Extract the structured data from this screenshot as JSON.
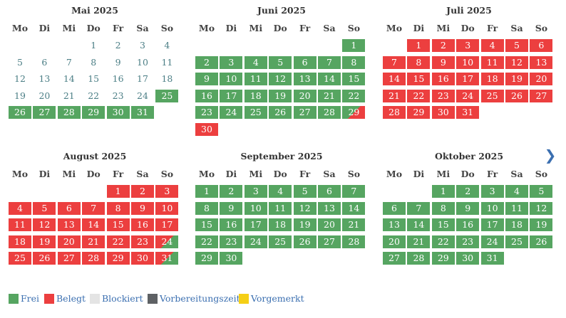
{
  "weekdays": [
    "Mo",
    "Di",
    "Mi",
    "Do",
    "Fr",
    "Sa",
    "So"
  ],
  "months": [
    {
      "title": "Mai 2025",
      "first_weekday": 3,
      "days": 31,
      "status": {
        "plain": [
          1,
          2,
          3,
          4,
          5,
          6,
          7,
          8,
          9,
          10,
          11,
          12,
          13,
          14,
          15,
          16,
          17,
          18,
          19,
          20,
          21,
          22,
          23,
          24
        ],
        "free": [
          25,
          26,
          27,
          28,
          29,
          30,
          31
        ]
      }
    },
    {
      "title": "Juni 2025",
      "first_weekday": 6,
      "days": 30,
      "status": {
        "free": [
          1,
          2,
          3,
          4,
          5,
          6,
          7,
          8,
          9,
          10,
          11,
          12,
          13,
          14,
          15,
          16,
          17,
          18,
          19,
          20,
          21,
          22,
          23,
          24,
          25,
          26,
          27,
          28
        ],
        "half-in": [
          29
        ],
        "booked": [
          30
        ]
      }
    },
    {
      "title": "Juli 2025",
      "first_weekday": 1,
      "days": 31,
      "status": {
        "booked": [
          1,
          2,
          3,
          4,
          5,
          6,
          7,
          8,
          9,
          10,
          11,
          12,
          13,
          14,
          15,
          16,
          17,
          18,
          19,
          20,
          21,
          22,
          23,
          24,
          25,
          26,
          27,
          28,
          29,
          30,
          31
        ]
      }
    },
    {
      "title": "August 2025",
      "first_weekday": 4,
      "days": 31,
      "status": {
        "booked": [
          1,
          2,
          3,
          4,
          5,
          6,
          7,
          8,
          9,
          10,
          11,
          12,
          13,
          14,
          15,
          16,
          17,
          18,
          19,
          20,
          21,
          22,
          23,
          25,
          26,
          27,
          28,
          29,
          30
        ],
        "half-out": [
          24,
          31
        ]
      }
    },
    {
      "title": "September 2025",
      "first_weekday": 0,
      "days": 30,
      "status": {
        "free": [
          1,
          2,
          3,
          4,
          5,
          6,
          7,
          8,
          9,
          10,
          11,
          12,
          13,
          14,
          15,
          16,
          17,
          18,
          19,
          20,
          21,
          22,
          23,
          24,
          25,
          26,
          27,
          28,
          29,
          30
        ]
      }
    },
    {
      "title": "Oktober 2025",
      "first_weekday": 2,
      "days": 31,
      "status": {
        "free": [
          1,
          2,
          3,
          4,
          5,
          6,
          7,
          8,
          9,
          10,
          11,
          12,
          13,
          14,
          15,
          16,
          17,
          18,
          19,
          20,
          21,
          22,
          23,
          24,
          25,
          26,
          27,
          28,
          29,
          30,
          31
        ]
      }
    }
  ],
  "next_icon": "chevron-right-icon",
  "next_glyph": "❯",
  "legend": [
    {
      "label": "Frei",
      "color": "#56a561"
    },
    {
      "label": "Belegt",
      "color": "#ec3f3f"
    },
    {
      "label": "Blockiert",
      "color": "#e4e4e4"
    },
    {
      "label": "Vorbereitungszeit",
      "color": "#5e6164"
    },
    {
      "label": "Vorgemerkt",
      "color": "#f5cf16"
    }
  ],
  "colors": {
    "free": "#56a561",
    "booked": "#ec3f3f",
    "link": "#3b6fb0",
    "plain_day": "#4c7f86"
  }
}
